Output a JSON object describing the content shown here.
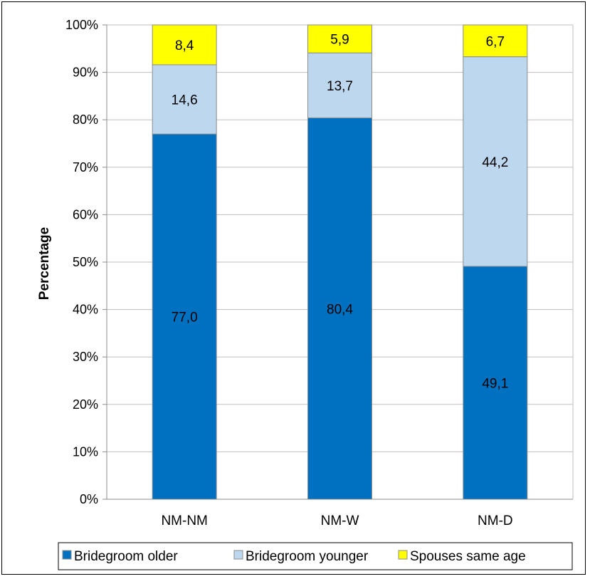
{
  "chart_data": {
    "type": "bar",
    "stacked": true,
    "normalized": true,
    "categories": [
      "NM-NM",
      "NM-W",
      "NM-D"
    ],
    "series": [
      {
        "name": "Bridegroom older",
        "values": [
          77.0,
          80.4,
          49.1
        ],
        "labels": [
          "77,0",
          "80,4",
          "49,1"
        ],
        "color": "#0070C0"
      },
      {
        "name": "Bridegroom younger",
        "values": [
          14.6,
          13.7,
          44.2
        ],
        "labels": [
          "14,6",
          "13,7",
          "44,2"
        ],
        "color": "#BDD7EE"
      },
      {
        "name": "Spouses same age",
        "values": [
          8.4,
          5.9,
          6.7
        ],
        "labels": [
          "8,4",
          "5,9",
          "6,7"
        ],
        "color": "#FFFF00"
      }
    ],
    "title": "",
    "xlabel": "",
    "ylabel": "Percentage",
    "ylim": [
      0,
      100
    ],
    "yticks": [
      "0%",
      "10%",
      "20%",
      "30%",
      "40%",
      "50%",
      "60%",
      "70%",
      "80%",
      "90%",
      "100%"
    ],
    "grid": true,
    "legend_position": "bottom"
  }
}
